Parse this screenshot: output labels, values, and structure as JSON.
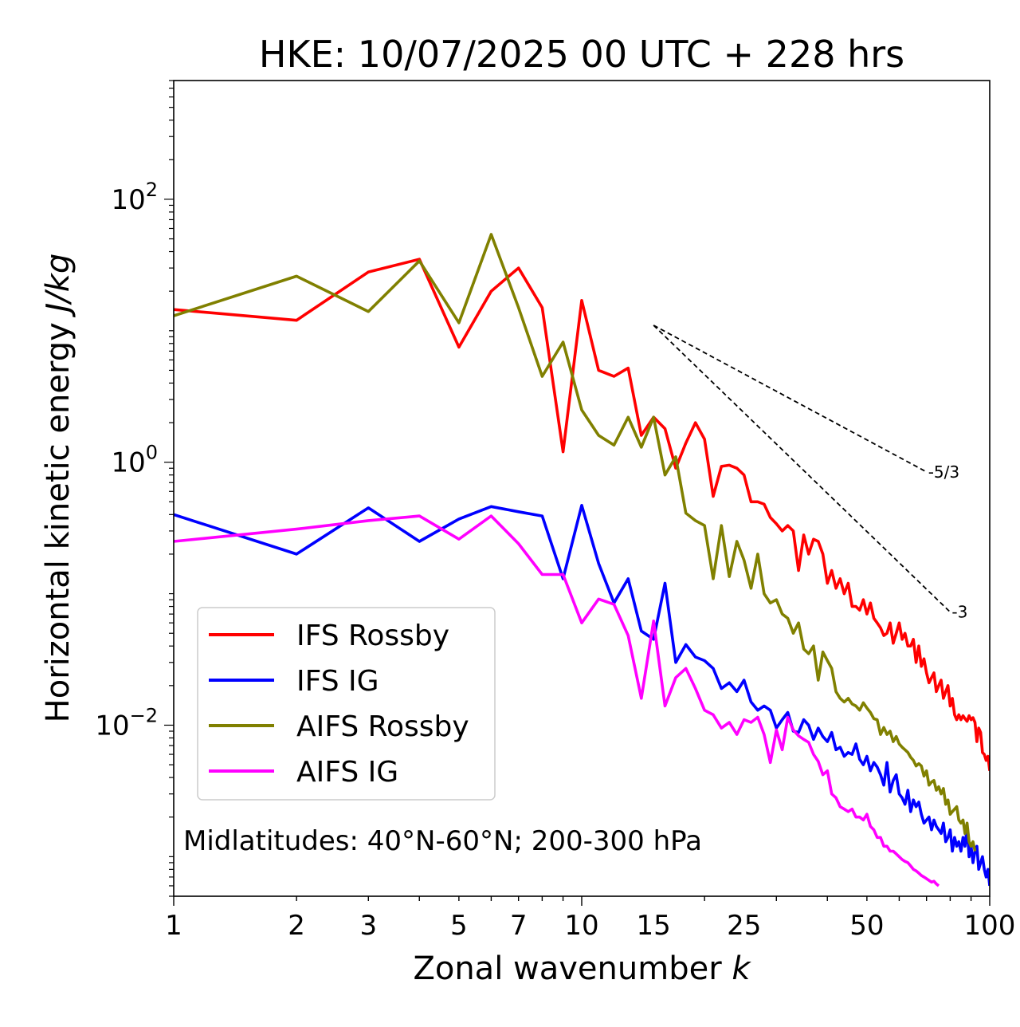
{
  "chart_data": {
    "type": "line",
    "title": "HKE: 10/07/2025 00 UTC + 228 hrs",
    "xlabel_text": "Zonal wavenumber ",
    "xlabel_var": "k",
    "ylabel_text": "Horizontal kinetic energy ",
    "ylabel_unit": "J/kg",
    "x_scale": "log",
    "y_scale": "log",
    "xlim": [
      1,
      100
    ],
    "ylim": [
      0.0005,
      800
    ],
    "x_ticks": [
      {
        "value": 1,
        "label": "1"
      },
      {
        "value": 2,
        "label": "2"
      },
      {
        "value": 3,
        "label": "3"
      },
      {
        "value": 5,
        "label": "5"
      },
      {
        "value": 7,
        "label": "7"
      },
      {
        "value": 10,
        "label": "10"
      },
      {
        "value": 15,
        "label": "15"
      },
      {
        "value": 25,
        "label": "25"
      },
      {
        "value": 50,
        "label": "50"
      },
      {
        "value": 100,
        "label": "100"
      }
    ],
    "y_ticks": [
      {
        "value": 100,
        "base": "10",
        "exp": "2"
      },
      {
        "value": 1,
        "base": "10",
        "exp": "0"
      },
      {
        "value": 0.01,
        "base": "10",
        "exp": "−2"
      }
    ],
    "grid": false,
    "legend_position": "lower-left",
    "annotation": "Midlatitudes: 40°N-60°N; 200-300 hPa",
    "reference_slopes": [
      {
        "label": "-5/3",
        "exponent": -1.6667,
        "x_start": 15,
        "x_end": 70,
        "y_start": 11
      },
      {
        "label": "-3",
        "exponent": -3,
        "x_start": 15,
        "x_end": 80,
        "y_start": 11
      }
    ],
    "series": [
      {
        "name": "IFS Rossby",
        "color": "#ff0000",
        "x": [
          1,
          2,
          3,
          4,
          5,
          6,
          7,
          8,
          9,
          10,
          11,
          12,
          13,
          14,
          15,
          16,
          17,
          18,
          19,
          20,
          21,
          22,
          23,
          24,
          25,
          26,
          27,
          28,
          29,
          30,
          31,
          32,
          33,
          34,
          35,
          36,
          37,
          38,
          39,
          40,
          41,
          42,
          43,
          44,
          45,
          46,
          47,
          48,
          49,
          50,
          51,
          52,
          53,
          54,
          55,
          56,
          57,
          58,
          59,
          60,
          61,
          62,
          63,
          64,
          65,
          66,
          67,
          68,
          69,
          70,
          71,
          72,
          73,
          74,
          75,
          76,
          77,
          78,
          79,
          80,
          81,
          82,
          83,
          84,
          85,
          86,
          87,
          88,
          89,
          90,
          91,
          92,
          93,
          94,
          95,
          96,
          97,
          98,
          99,
          100
        ],
        "y": [
          14.5,
          12,
          28,
          35,
          7.5,
          20,
          30,
          15,
          1.2,
          17,
          5,
          4.5,
          5.2,
          1.6,
          2.2,
          1.8,
          0.9,
          1.4,
          2.0,
          1.5,
          0.55,
          0.93,
          0.95,
          0.9,
          0.8,
          0.5,
          0.5,
          0.48,
          0.38,
          0.34,
          0.3,
          0.33,
          0.3,
          0.15,
          0.28,
          0.2,
          0.26,
          0.25,
          0.2,
          0.12,
          0.15,
          0.11,
          0.13,
          0.1,
          0.12,
          0.08,
          0.08,
          0.075,
          0.09,
          0.07,
          0.085,
          0.065,
          0.06,
          0.055,
          0.048,
          0.05,
          0.06,
          0.042,
          0.05,
          0.06,
          0.045,
          0.05,
          0.04,
          0.04,
          0.045,
          0.03,
          0.04,
          0.028,
          0.032,
          0.025,
          0.021,
          0.023,
          0.025,
          0.018,
          0.02,
          0.022,
          0.016,
          0.018,
          0.02,
          0.014,
          0.016,
          0.012,
          0.011,
          0.012,
          0.011,
          0.0118,
          0.0112,
          0.0107,
          0.0118,
          0.011,
          0.0114,
          0.0105,
          0.0075,
          0.0095,
          0.0088,
          0.0062,
          0.006,
          0.0054,
          0.0058,
          0.0045
        ]
      },
      {
        "name": "IFS IG",
        "color": "#0000ff",
        "x": [
          1,
          2,
          3,
          4,
          5,
          6,
          7,
          8,
          9,
          10,
          11,
          12,
          13,
          14,
          15,
          16,
          17,
          18,
          19,
          20,
          21,
          22,
          23,
          24,
          25,
          26,
          27,
          28,
          29,
          30,
          31,
          32,
          33,
          34,
          35,
          36,
          37,
          38,
          39,
          40,
          41,
          42,
          43,
          44,
          45,
          46,
          47,
          48,
          49,
          50,
          51,
          52,
          53,
          54,
          55,
          56,
          57,
          58,
          59,
          60,
          61,
          62,
          63,
          64,
          65,
          66,
          67,
          68,
          69,
          70,
          71,
          72,
          73,
          74,
          75,
          76,
          77,
          78,
          79,
          80,
          81,
          82,
          83,
          84,
          85,
          86,
          87,
          88,
          89,
          90,
          91,
          92,
          93,
          94,
          95,
          96,
          97,
          98,
          99,
          100
        ],
        "y": [
          0.4,
          0.2,
          0.45,
          0.25,
          0.37,
          0.46,
          0.42,
          0.39,
          0.13,
          0.47,
          0.17,
          0.085,
          0.13,
          0.052,
          0.045,
          0.12,
          0.03,
          0.041,
          0.033,
          0.031,
          0.027,
          0.019,
          0.021,
          0.018,
          0.022,
          0.015,
          0.013,
          0.014,
          0.013,
          0.0095,
          0.011,
          0.0125,
          0.009,
          0.0088,
          0.011,
          0.01,
          0.0078,
          0.0095,
          0.0082,
          0.0075,
          0.0088,
          0.0065,
          0.0068,
          0.0058,
          0.0062,
          0.006,
          0.0072,
          0.0055,
          0.005,
          0.0058,
          0.0045,
          0.0052,
          0.0048,
          0.0042,
          0.0035,
          0.0052,
          0.0031,
          0.0038,
          0.0042,
          0.003,
          0.0028,
          0.0025,
          0.0032,
          0.0022,
          0.0027,
          0.0024,
          0.0026,
          0.0021,
          0.0018,
          0.0019,
          0.002,
          0.0016,
          0.0019,
          0.0017,
          0.0016,
          0.0015,
          0.0018,
          0.0013,
          0.0014,
          0.0016,
          0.0011,
          0.0014,
          0.0012,
          0.0013,
          0.0011,
          0.0014,
          0.0012,
          0.0017,
          0.001,
          0.0012,
          0.0009,
          0.0011,
          0.0012,
          0.0008,
          0.0009,
          0.001,
          0.0008,
          0.0007,
          0.0008,
          0.0006
        ]
      },
      {
        "name": "AIFS Rossby",
        "color": "#808000",
        "x": [
          1,
          2,
          3,
          4,
          5,
          6,
          7,
          8,
          9,
          10,
          11,
          12,
          13,
          14,
          15,
          16,
          17,
          18,
          19,
          20,
          21,
          22,
          23,
          24,
          25,
          26,
          27,
          28,
          29,
          30,
          31,
          32,
          33,
          34,
          35,
          36,
          37,
          38,
          39,
          40,
          41,
          42,
          43,
          44,
          45,
          46,
          47,
          48,
          49,
          50,
          51,
          52,
          53,
          54,
          55,
          56,
          57,
          58,
          59,
          60,
          61,
          62,
          63,
          64,
          65,
          66,
          67,
          68,
          69,
          70,
          71,
          72,
          73,
          74,
          75,
          76,
          77,
          78,
          79,
          80,
          81,
          82,
          83,
          84,
          85,
          86,
          87,
          88,
          89,
          90,
          91,
          92
        ],
        "y": [
          13,
          26,
          14,
          34,
          11.5,
          54,
          15,
          4.5,
          8.2,
          2.5,
          1.6,
          1.35,
          2.2,
          1.3,
          2.2,
          0.8,
          1.1,
          0.41,
          0.36,
          0.33,
          0.13,
          0.33,
          0.135,
          0.25,
          0.18,
          0.11,
          0.2,
          0.1,
          0.085,
          0.09,
          0.07,
          0.065,
          0.05,
          0.06,
          0.038,
          0.035,
          0.04,
          0.022,
          0.036,
          0.031,
          0.027,
          0.018,
          0.016,
          0.015,
          0.016,
          0.0145,
          0.014,
          0.013,
          0.0148,
          0.0135,
          0.0125,
          0.0112,
          0.011,
          0.0085,
          0.0096,
          0.0085,
          0.009,
          0.0075,
          0.0082,
          0.0072,
          0.0068,
          0.0065,
          0.0062,
          0.0057,
          0.0054,
          0.0049,
          0.0051,
          0.0049,
          0.0041,
          0.0045,
          0.0035,
          0.0037,
          0.0038,
          0.0032,
          0.0034,
          0.003,
          0.0033,
          0.0025,
          0.0027,
          0.0021,
          0.0022,
          0.0023,
          0.0024,
          0.0019,
          0.0018,
          0.0019,
          0.0015,
          0.0018,
          0.0013,
          0.0012,
          0.0013,
          0.0011
        ]
      },
      {
        "name": "AIFS IG",
        "color": "#ff00ff",
        "x": [
          1,
          2,
          3,
          4,
          5,
          6,
          7,
          8,
          9,
          10,
          11,
          12,
          13,
          14,
          15,
          16,
          17,
          18,
          19,
          20,
          21,
          22,
          23,
          24,
          25,
          26,
          27,
          28,
          29,
          30,
          31,
          32,
          33,
          34,
          35,
          36,
          37,
          38,
          39,
          40,
          41,
          42,
          43,
          44,
          45,
          46,
          47,
          48,
          49,
          50,
          51,
          52,
          53,
          54,
          55,
          56,
          57,
          58,
          59,
          60,
          61,
          62,
          63,
          64,
          65,
          66,
          67,
          68,
          69,
          70,
          71,
          72,
          73,
          74,
          75
        ],
        "y": [
          0.25,
          0.31,
          0.36,
          0.39,
          0.26,
          0.39,
          0.24,
          0.14,
          0.14,
          0.06,
          0.091,
          0.083,
          0.048,
          0.016,
          0.062,
          0.014,
          0.023,
          0.027,
          0.019,
          0.013,
          0.012,
          0.0095,
          0.0105,
          0.0085,
          0.011,
          0.0105,
          0.0115,
          0.0085,
          0.0052,
          0.0092,
          0.0065,
          0.0115,
          0.0092,
          0.0083,
          0.0078,
          0.0074,
          0.006,
          0.0053,
          0.0042,
          0.0045,
          0.003,
          0.0028,
          0.0024,
          0.0023,
          0.0022,
          0.0023,
          0.002,
          0.002,
          0.0019,
          0.0021,
          0.0017,
          0.0016,
          0.0014,
          0.0014,
          0.0012,
          0.0012,
          0.0011,
          0.0011,
          0.00105,
          0.001,
          0.00095,
          0.00092,
          0.0009,
          0.00085,
          0.0008,
          0.00078,
          0.00075,
          0.00072,
          0.0007,
          0.00068,
          0.00066,
          0.00064,
          0.00065,
          0.00062,
          0.0006
        ]
      }
    ]
  }
}
